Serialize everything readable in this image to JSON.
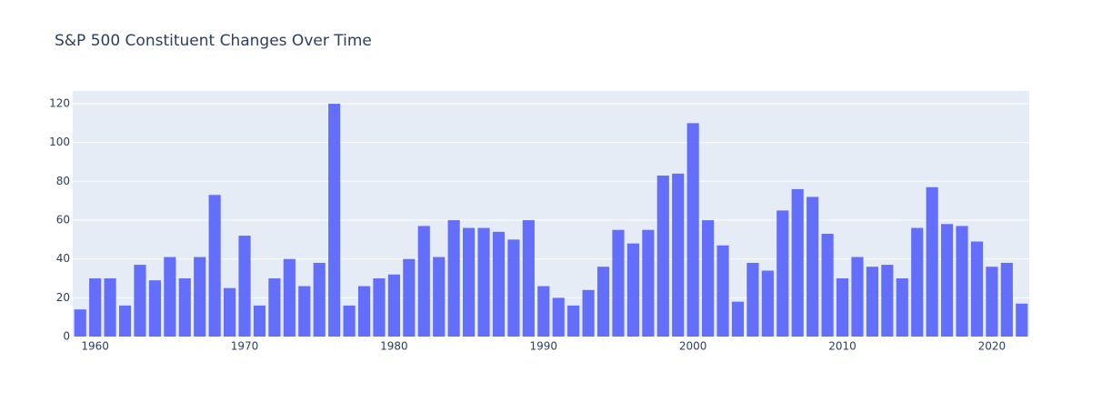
{
  "chart_data": {
    "type": "bar",
    "title": "S&P 500 Constituent Changes Over Time",
    "x": [
      1959,
      1960,
      1961,
      1962,
      1963,
      1964,
      1965,
      1966,
      1967,
      1968,
      1969,
      1970,
      1971,
      1972,
      1973,
      1974,
      1975,
      1976,
      1977,
      1978,
      1979,
      1980,
      1981,
      1982,
      1983,
      1984,
      1985,
      1986,
      1987,
      1988,
      1989,
      1990,
      1991,
      1992,
      1993,
      1994,
      1995,
      1996,
      1997,
      1998,
      1999,
      2000,
      2001,
      2002,
      2003,
      2004,
      2005,
      2006,
      2007,
      2008,
      2009,
      2010,
      2011,
      2012,
      2013,
      2014,
      2015,
      2016,
      2017,
      2018,
      2019,
      2020,
      2021,
      2022
    ],
    "values": [
      14,
      30,
      30,
      16,
      37,
      29,
      41,
      30,
      41,
      73,
      25,
      52,
      16,
      30,
      40,
      26,
      38,
      120,
      16,
      26,
      30,
      32,
      40,
      57,
      41,
      60,
      56,
      56,
      54,
      50,
      60,
      26,
      20,
      16,
      24,
      36,
      55,
      48,
      55,
      83,
      84,
      110,
      60,
      47,
      18,
      38,
      34,
      65,
      76,
      72,
      53,
      30,
      41,
      36,
      37,
      30,
      56,
      77,
      58,
      57,
      49,
      36,
      38,
      17
    ],
    "color": "#636efa",
    "xlim": [
      1958.5,
      2022.5
    ],
    "xticks": [
      1960,
      1970,
      1980,
      1990,
      2000,
      2010,
      2020
    ],
    "ylim": [
      0,
      126.6
    ],
    "yticks": [
      0,
      20,
      40,
      60,
      80,
      100,
      120
    ],
    "grid": true
  }
}
